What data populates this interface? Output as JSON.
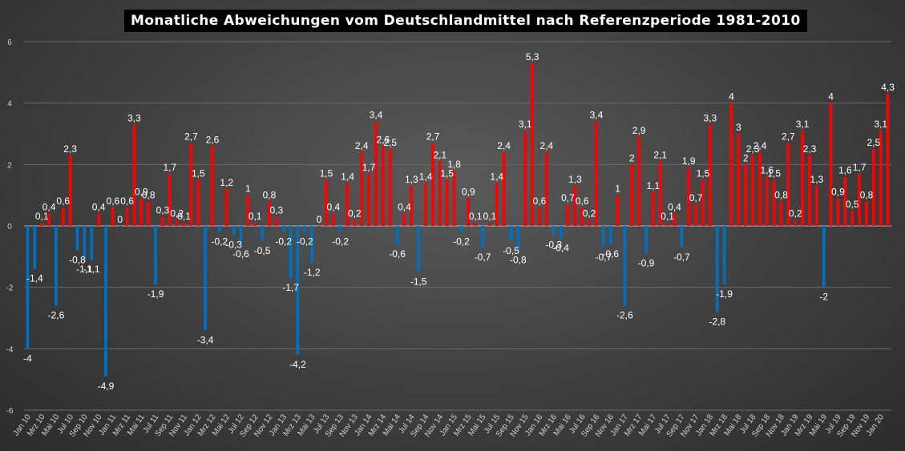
{
  "chart_data": {
    "type": "bar",
    "title": "Monatliche Abweichungen vom Deutschlandmittel nach Referenzperiode 1981-2010",
    "xlabel": "",
    "ylabel": "",
    "ylim": [
      -6,
      6
    ],
    "yticks": [
      6,
      4,
      2,
      0,
      -2,
      -4,
      -6
    ],
    "grid": true,
    "legend": "none",
    "colors": {
      "positive": "#ff0000",
      "negative": "#0070c0"
    },
    "xtick_labels": [
      "Jan 10",
      "Mrz 10",
      "Mai 10",
      "Jul 10",
      "Sep 10",
      "Nov 10",
      "Jan 11",
      "Mrz 11",
      "Mai 11",
      "Jul 11",
      "Sep 11",
      "Nov 11",
      "Jan 12",
      "Mrz 12",
      "Mai 12",
      "Jul 12",
      "Sep 12",
      "Nov 12",
      "Jan 13",
      "Mrz 13",
      "Mai 13",
      "Jul 13",
      "Sep 13",
      "Nov 13",
      "Jan 14",
      "Mrz 14",
      "Mai 14",
      "Jul 14",
      "Sep 14",
      "Nov 14",
      "Jan 15",
      "Mrz 15",
      "Mai 15",
      "Jul 15",
      "Sep 15",
      "Nov 15",
      "Jan 16",
      "Mrz 16",
      "Mai 16",
      "Jul 16",
      "Sep 16",
      "Nov 16",
      "Jan 17",
      "Mrz 17",
      "Mai 17",
      "Jul 17",
      "Sep 17",
      "Nov 17",
      "Jan 18",
      "Mrz 18",
      "Mai 18",
      "Jul 18",
      "Sep 18",
      "Nov 18",
      "Jan 19",
      "Mrz 19",
      "Mai 19",
      "Jul 19",
      "Sep 19",
      "Nov 19",
      "Jan 20"
    ],
    "values": [
      -4.0,
      -1.4,
      0.1,
      0.4,
      -2.6,
      0.6,
      2.3,
      -0.8,
      -1.1,
      -1.1,
      0.4,
      -4.9,
      0.6,
      0.0,
      0.6,
      3.3,
      0.9,
      0.8,
      -1.9,
      0.3,
      1.7,
      0.2,
      0.1,
      2.7,
      1.5,
      -3.4,
      2.6,
      -0.2,
      1.2,
      -0.3,
      -0.6,
      1.0,
      0.1,
      -0.5,
      0.8,
      0.3,
      -0.2,
      -1.7,
      -4.2,
      -0.2,
      -1.2,
      0.0,
      1.5,
      0.4,
      -0.2,
      1.4,
      0.2,
      2.4,
      1.7,
      3.4,
      2.6,
      2.5,
      -0.6,
      0.4,
      1.3,
      -1.5,
      1.4,
      2.7,
      2.1,
      1.5,
      1.8,
      -0.2,
      0.9,
      0.1,
      -0.7,
      0.1,
      1.4,
      2.4,
      -0.5,
      -0.8,
      3.1,
      5.3,
      0.6,
      2.4,
      -0.3,
      -0.4,
      0.7,
      1.3,
      0.6,
      0.2,
      3.4,
      -0.7,
      -0.6,
      1.0,
      -2.6,
      2.0,
      2.9,
      -0.9,
      1.1,
      2.1,
      0.1,
      0.4,
      -0.7,
      1.9,
      0.7,
      1.5,
      3.3,
      -2.8,
      -1.9,
      4.0,
      3.0,
      2.0,
      2.3,
      2.4,
      1.6,
      1.5,
      0.8,
      2.7,
      0.2,
      3.1,
      2.3,
      1.3,
      -2.0,
      4.0,
      0.9,
      1.6,
      0.5,
      1.7,
      0.8,
      2.5,
      3.1,
      4.3
    ],
    "data_labels": [
      "-4",
      "-1,4",
      "0,1",
      "0,4",
      "-2,6",
      "0,6",
      "2,3",
      "-0,8",
      "-1,1",
      "-1,1",
      "0,4",
      "-4,9",
      "0,6",
      "0",
      "0,6",
      "3,3",
      "0,9",
      "0,8",
      "-1,9",
      "0,3",
      "1,7",
      "0,2",
      "0,1",
      "2,7",
      "1,5",
      "-3,4",
      "2,6",
      "-0,2",
      "1,2",
      "-0,3",
      "-0,6",
      "1",
      "0,1",
      "-0,5",
      "0,8",
      "0,3",
      "-0,2",
      "-1,7",
      "-4,2",
      "-0,2",
      "-1,2",
      "0",
      "1,5",
      "0,4",
      "-0,2",
      "1,4",
      "0,2",
      "2,4",
      "1,7",
      "3,4",
      "2,6",
      "2,5",
      "-0,6",
      "0,4",
      "1,3",
      "-1,5",
      "1,4",
      "2,7",
      "2,1",
      "1,5",
      "1,8",
      "-0,2",
      "0,9",
      "0,1",
      "-0,7",
      "0,1",
      "1,4",
      "2,4",
      "-0,5",
      "-0,8",
      "3,1",
      "5,3",
      "0,6",
      "2,4",
      "-0,3",
      "-0,4",
      "0,7",
      "1,3",
      "0,6",
      "0,2",
      "3,4",
      "-0,7",
      "-0,6",
      "1",
      "-2,6",
      "2",
      "2,9",
      "-0,9",
      "1,1",
      "2,1",
      "0,1",
      "0,4",
      "-0,7",
      "1,9",
      "0,7",
      "1,5",
      "3,3",
      "-2,8",
      "-1,9",
      "4",
      "3",
      "2",
      "2,3",
      "2,4",
      "1,6",
      "1,5",
      "0,8",
      "2,7",
      "0,2",
      "3,1",
      "2,3",
      "1,3",
      "-2",
      "4",
      "0,9",
      "1,6",
      "0,5",
      "1,7",
      "0,8",
      "2,5",
      "3,1",
      "4,3"
    ]
  }
}
